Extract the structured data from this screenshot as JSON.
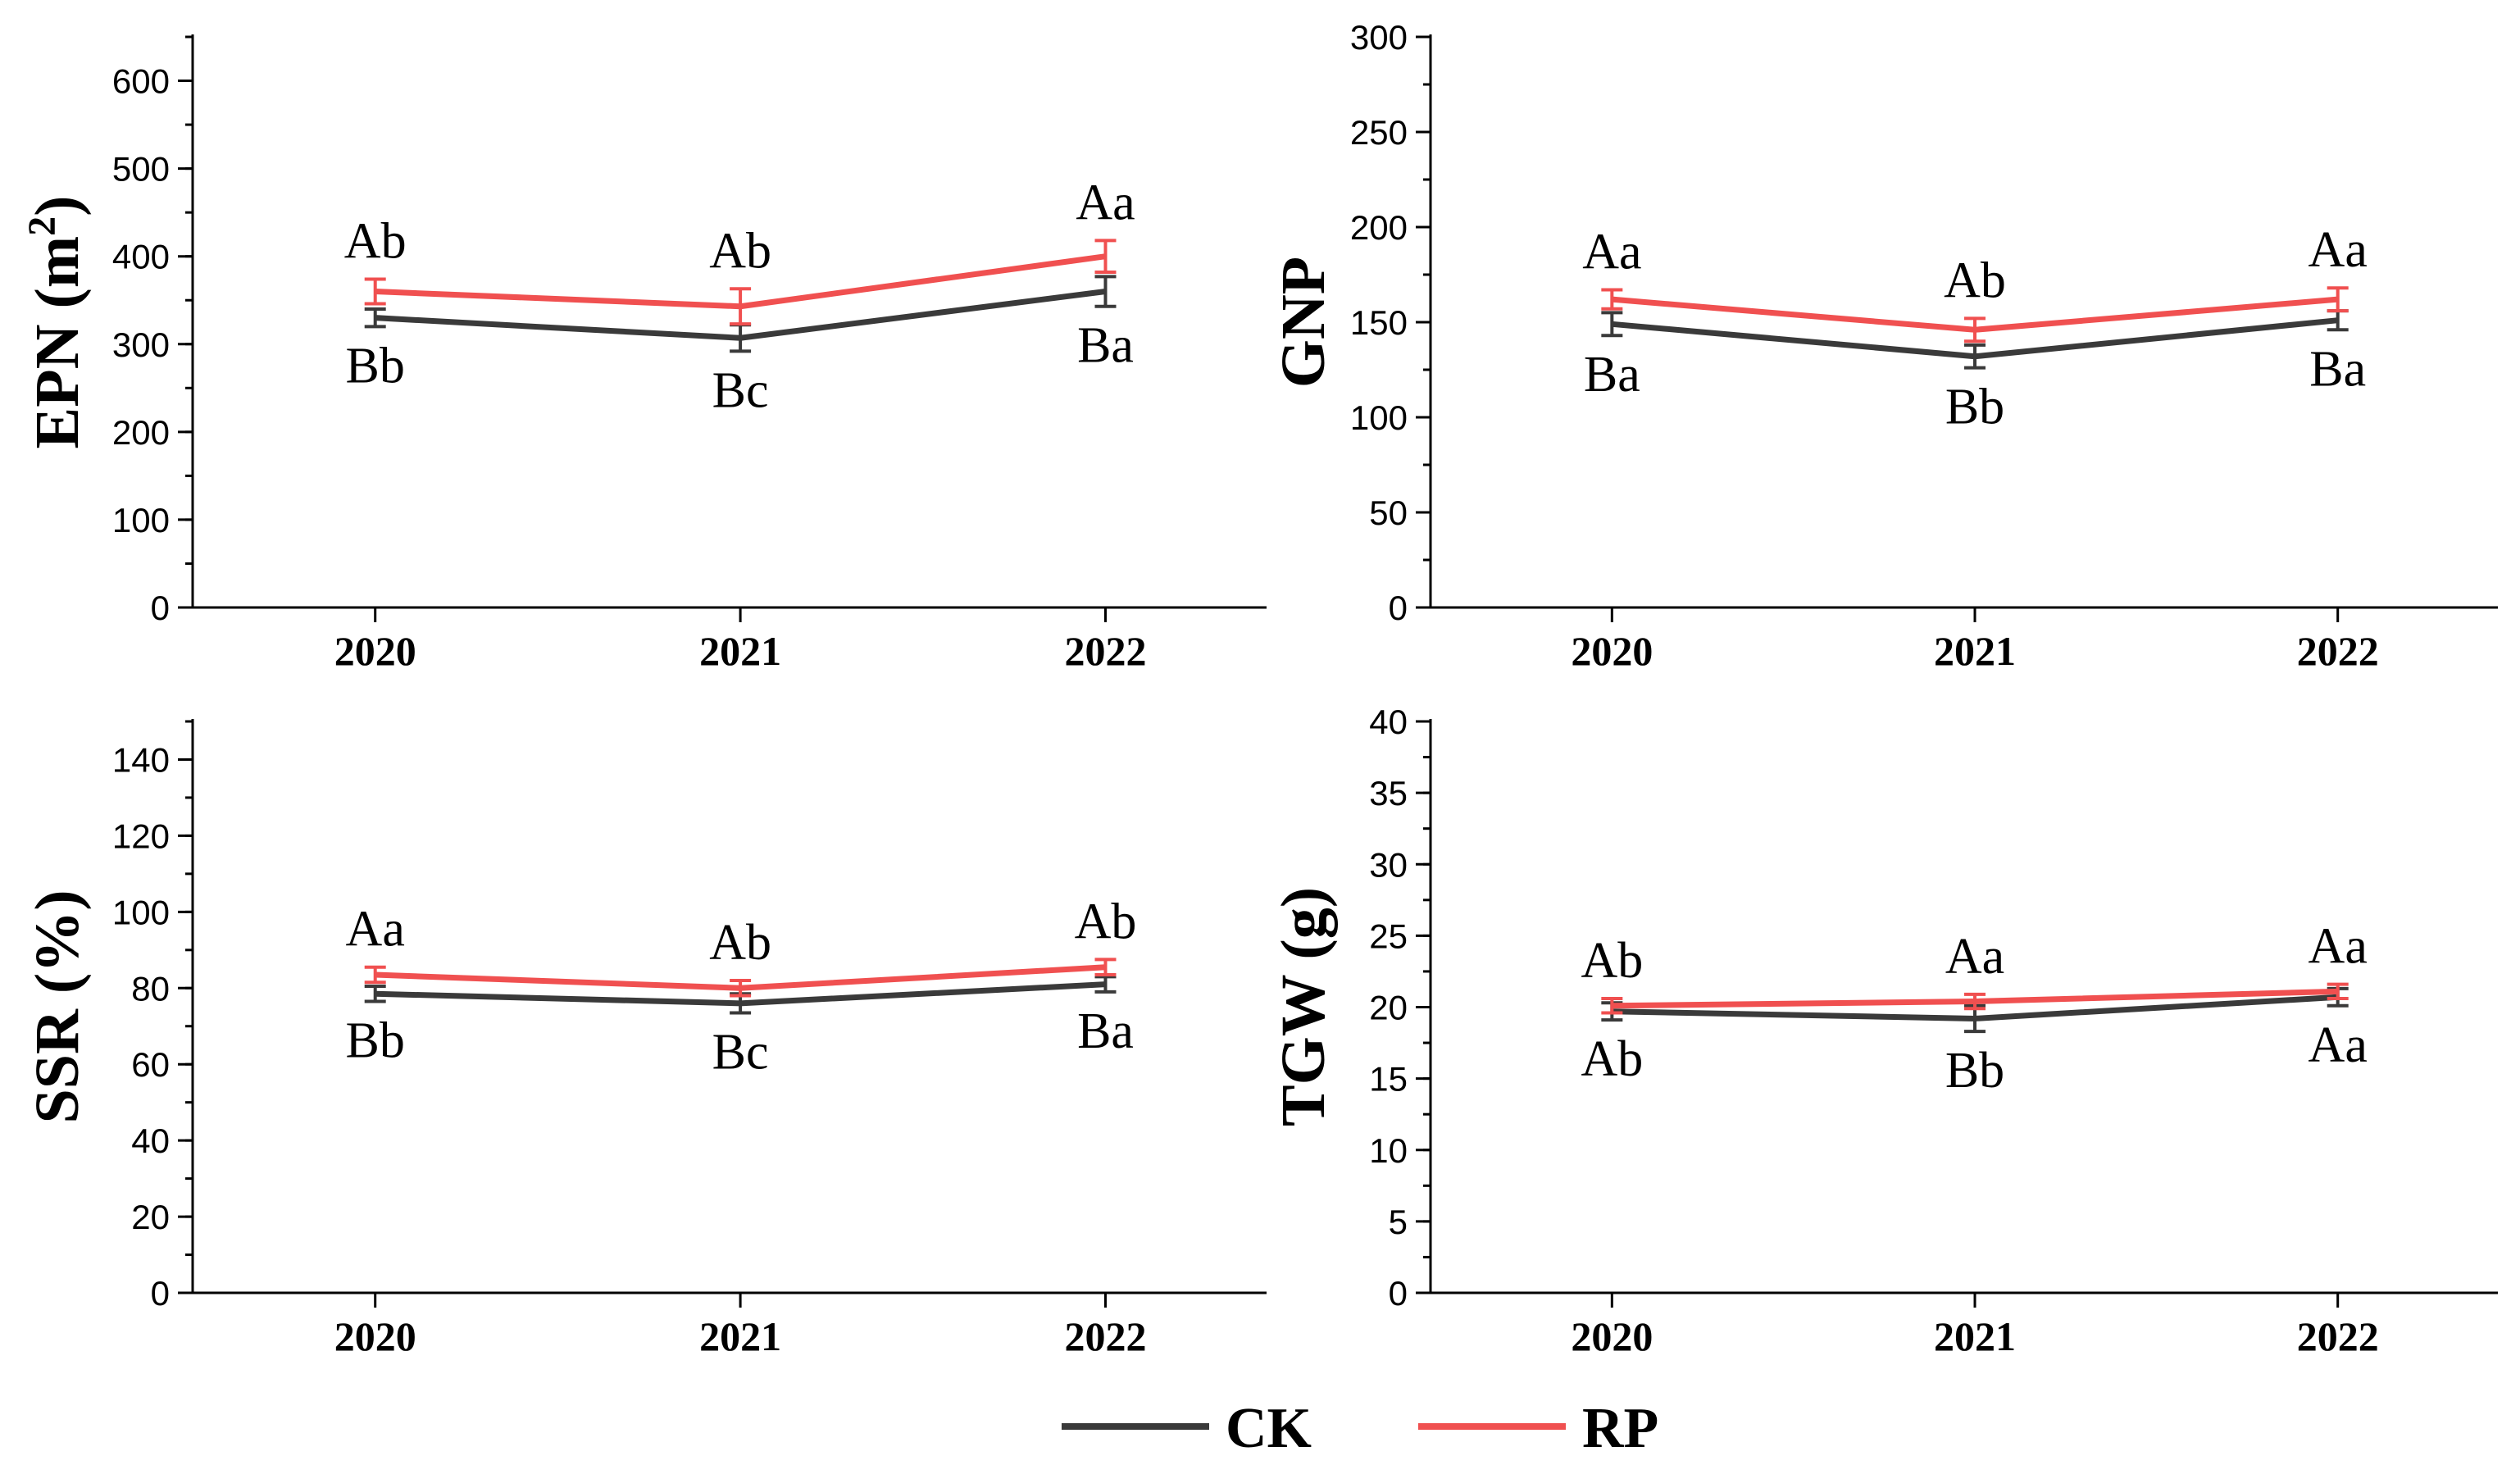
{
  "legend": [
    {
      "name": "CK",
      "color": "#3a3a3a"
    },
    {
      "name": "RP",
      "color": "#f05050"
    }
  ],
  "chart_data": [
    {
      "id": "epn",
      "type": "line",
      "title": "",
      "ylabel": "EPN (m²)",
      "ylabel_main": "EPN (m",
      "ylabel_sup": "2",
      "ylabel_close": ")",
      "xlabel": "",
      "categories": [
        "2020",
        "2021",
        "2022"
      ],
      "ylim": [
        0,
        650
      ],
      "yticks": [
        0,
        100,
        200,
        300,
        400,
        500,
        600
      ],
      "minor_step": 50,
      "series": [
        {
          "name": "CK",
          "values": [
            330,
            307,
            360
          ],
          "errors": [
            10,
            15,
            17
          ],
          "labels": [
            "Bb",
            "Bc",
            "Ba"
          ]
        },
        {
          "name": "RP",
          "values": [
            360,
            343,
            400
          ],
          "errors": [
            14,
            20,
            18
          ],
          "labels": [
            "Ab",
            "Ab",
            "Aa"
          ]
        }
      ]
    },
    {
      "id": "gnp",
      "type": "line",
      "title": "",
      "ylabel": "GNP",
      "xlabel": "",
      "categories": [
        "2020",
        "2021",
        "2022"
      ],
      "ylim": [
        0,
        300
      ],
      "yticks": [
        0,
        50,
        100,
        150,
        200,
        250,
        300
      ],
      "minor_step": 25,
      "series": [
        {
          "name": "CK",
          "values": [
            149,
            132,
            151
          ],
          "errors": [
            6,
            6,
            5
          ],
          "labels": [
            "Ba",
            "Bb",
            "Ba"
          ]
        },
        {
          "name": "RP",
          "values": [
            162,
            146,
            162
          ],
          "errors": [
            5,
            6,
            6
          ],
          "labels": [
            "Aa",
            "Ab",
            "Aa"
          ]
        }
      ]
    },
    {
      "id": "ssr",
      "type": "line",
      "title": "",
      "ylabel": "SSR (%)",
      "xlabel": "",
      "categories": [
        "2020",
        "2021",
        "2022"
      ],
      "ylim": [
        0,
        150
      ],
      "yticks": [
        0,
        20,
        40,
        60,
        80,
        100,
        120,
        140
      ],
      "minor_step": 10,
      "series": [
        {
          "name": "CK",
          "values": [
            78.5,
            76,
            81
          ],
          "errors": [
            2,
            2.5,
            2
          ],
          "labels": [
            "Bb",
            "Bc",
            "Ba"
          ]
        },
        {
          "name": "RP",
          "values": [
            83.5,
            80,
            85.5
          ],
          "errors": [
            2,
            2,
            2
          ],
          "labels": [
            "Aa",
            "Ab",
            "Ab"
          ]
        }
      ]
    },
    {
      "id": "tgw",
      "type": "line",
      "title": "",
      "ylabel": "TGW (g)",
      "xlabel": "",
      "categories": [
        "2020",
        "2021",
        "2022"
      ],
      "ylim": [
        0,
        40
      ],
      "yticks": [
        0,
        5,
        10,
        15,
        20,
        25,
        30,
        35,
        40
      ],
      "minor_step": 2.5,
      "series": [
        {
          "name": "CK",
          "values": [
            19.7,
            19.2,
            20.7
          ],
          "errors": [
            0.6,
            0.9,
            0.6
          ],
          "labels": [
            "Ab",
            "Bb",
            "Aa"
          ]
        },
        {
          "name": "RP",
          "values": [
            20.1,
            20.4,
            21.1
          ],
          "errors": [
            0.5,
            0.5,
            0.5
          ],
          "labels": [
            "Ab",
            "Aa",
            "Aa"
          ]
        }
      ]
    }
  ]
}
